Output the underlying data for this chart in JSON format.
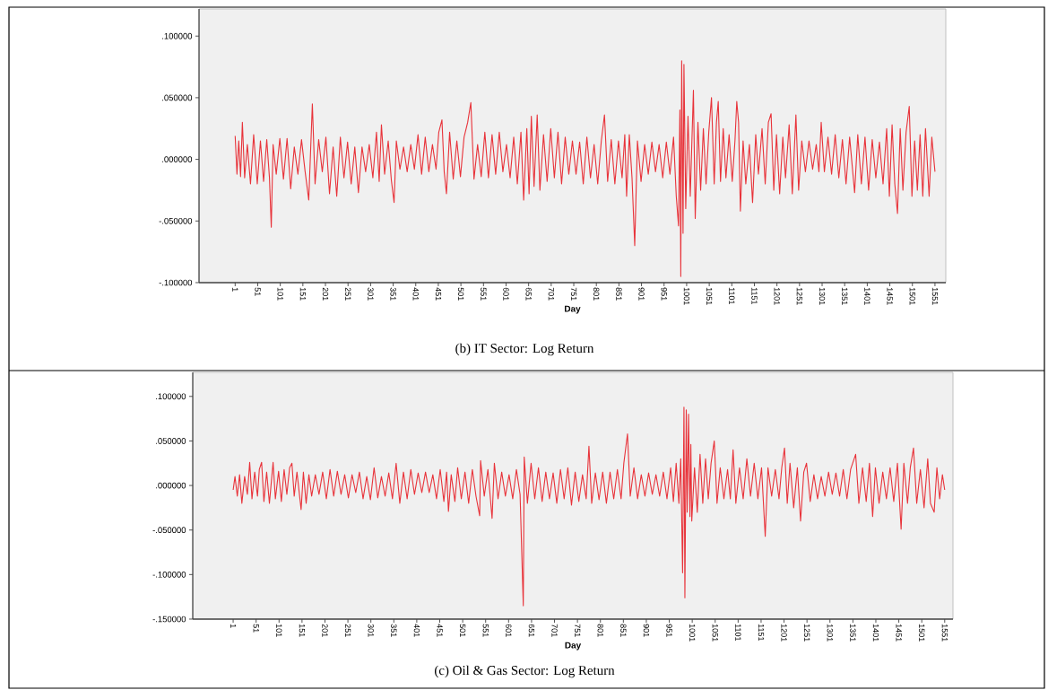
{
  "chart_data": [
    {
      "type": "line",
      "xlabel": "Day",
      "annotations": [
        "(b) IT Sector: Log Return"
      ],
      "color": "#e8333a",
      "marker": "none",
      "line_style": "solid",
      "xlim": [
        -79,
        1575
      ],
      "ylim": [
        -0.1,
        0.122
      ],
      "xticks": [
        1,
        51,
        101,
        151,
        201,
        251,
        301,
        351,
        401,
        451,
        501,
        551,
        601,
        651,
        701,
        751,
        801,
        851,
        901,
        951,
        1001,
        1051,
        1101,
        1151,
        1201,
        1251,
        1301,
        1351,
        1401,
        1451,
        1501,
        1551
      ],
      "yticks": [
        {
          "value": -0.1,
          "label": "-.100000"
        },
        {
          "value": -0.05,
          "label": "-.050000"
        },
        {
          "value": 0,
          "label": ".000000"
        },
        {
          "value": 0.05,
          "label": ".050000"
        },
        {
          "value": 0.1,
          "label": ".100000"
        }
      ],
      "x": [
        1,
        5,
        9,
        13,
        17,
        22,
        28,
        35,
        42,
        50,
        57,
        64,
        71,
        77,
        81,
        85,
        92,
        100,
        108,
        116,
        124,
        132,
        140,
        148,
        156,
        164,
        172,
        178,
        186,
        194,
        202,
        210,
        218,
        226,
        234,
        242,
        250,
        258,
        266,
        274,
        282,
        290,
        298,
        306,
        314,
        320,
        325,
        332,
        340,
        347,
        353,
        358,
        366,
        374,
        382,
        390,
        398,
        406,
        414,
        422,
        430,
        438,
        446,
        452,
        459,
        464,
        469,
        476,
        484,
        492,
        500,
        508,
        516,
        523,
        530,
        538,
        546,
        554,
        562,
        570,
        578,
        586,
        594,
        602,
        610,
        618,
        626,
        634,
        640,
        647,
        652,
        657,
        663,
        670,
        676,
        684,
        692,
        700,
        708,
        716,
        724,
        732,
        740,
        748,
        756,
        764,
        772,
        780,
        788,
        796,
        804,
        812,
        819,
        826,
        834,
        842,
        850,
        858,
        864,
        868,
        874,
        880,
        886,
        892,
        900,
        908,
        916,
        924,
        932,
        940,
        948,
        956,
        964,
        972,
        978,
        983,
        986,
        988,
        990,
        993,
        995,
        999,
        1004,
        1009,
        1016,
        1020,
        1026,
        1032,
        1038,
        1044,
        1050,
        1056,
        1062,
        1067,
        1071,
        1076,
        1082,
        1088,
        1095,
        1102,
        1108,
        1112,
        1116,
        1120,
        1126,
        1132,
        1140,
        1147,
        1154,
        1160,
        1168,
        1175,
        1182,
        1188,
        1194,
        1200,
        1207,
        1214,
        1220,
        1228,
        1235,
        1243,
        1249,
        1256,
        1264,
        1272,
        1280,
        1288,
        1294,
        1299,
        1306,
        1314,
        1322,
        1330,
        1338,
        1346,
        1354,
        1362,
        1373,
        1380,
        1388,
        1396,
        1404,
        1412,
        1420,
        1428,
        1436,
        1444,
        1450,
        1456,
        1462,
        1468,
        1474,
        1480,
        1487,
        1494,
        1500,
        1506,
        1512,
        1518,
        1524,
        1530,
        1538,
        1544,
        1551
      ],
      "values": [
        0.019,
        -0.012,
        0.015,
        -0.014,
        0.03,
        -0.015,
        0.012,
        -0.02,
        0.02,
        -0.02,
        0.015,
        -0.018,
        0.016,
        -0.015,
        -0.055,
        0.012,
        -0.012,
        0.017,
        -0.016,
        0.017,
        -0.024,
        0.01,
        -0.012,
        0.016,
        -0.01,
        -0.033,
        0.045,
        -0.02,
        0.016,
        -0.01,
        0.018,
        -0.028,
        0.01,
        -0.03,
        0.018,
        -0.015,
        0.014,
        -0.02,
        0.01,
        -0.027,
        0.01,
        -0.01,
        0.012,
        -0.015,
        0.022,
        -0.018,
        0.028,
        -0.012,
        0.015,
        -0.017,
        -0.035,
        0.015,
        -0.008,
        0.01,
        -0.01,
        0.012,
        -0.008,
        0.02,
        -0.012,
        0.018,
        -0.01,
        0.012,
        -0.008,
        0.022,
        0.032,
        -0.01,
        -0.028,
        0.022,
        -0.016,
        0.015,
        -0.014,
        0.018,
        0.03,
        0.046,
        -0.016,
        0.012,
        -0.014,
        0.022,
        -0.015,
        0.02,
        -0.012,
        0.022,
        -0.01,
        0.012,
        -0.015,
        0.018,
        -0.02,
        0.022,
        -0.033,
        0.025,
        -0.028,
        0.035,
        -0.022,
        0.036,
        -0.025,
        0.02,
        -0.018,
        0.025,
        -0.015,
        0.022,
        -0.02,
        0.018,
        -0.012,
        0.015,
        -0.012,
        0.014,
        -0.02,
        0.018,
        -0.015,
        0.012,
        -0.02,
        0.015,
        0.036,
        -0.018,
        0.016,
        -0.02,
        0.015,
        -0.015,
        0.02,
        -0.03,
        0.02,
        -0.015,
        -0.07,
        0.015,
        -0.018,
        0.012,
        -0.012,
        0.014,
        -0.01,
        0.012,
        -0.015,
        0.014,
        -0.012,
        0.018,
        -0.03,
        -0.054,
        0.04,
        -0.095,
        0.08,
        -0.06,
        0.077,
        -0.04,
        0.035,
        -0.03,
        0.056,
        -0.048,
        0.03,
        -0.025,
        0.025,
        -0.02,
        0.022,
        0.05,
        -0.02,
        0.03,
        0.047,
        -0.018,
        0.025,
        -0.015,
        0.02,
        -0.018,
        0.015,
        0.047,
        0.03,
        -0.042,
        0.015,
        -0.02,
        0.012,
        -0.035,
        0.02,
        -0.012,
        0.025,
        -0.02,
        0.03,
        0.037,
        -0.025,
        0.02,
        -0.028,
        0.018,
        -0.015,
        0.028,
        -0.028,
        0.036,
        -0.025,
        0.015,
        -0.01,
        0.015,
        -0.008,
        0.012,
        -0.01,
        0.03,
        -0.01,
        0.018,
        -0.012,
        0.02,
        -0.015,
        0.016,
        -0.02,
        0.018,
        -0.027,
        0.02,
        -0.02,
        0.018,
        -0.025,
        0.016,
        -0.015,
        0.014,
        -0.02,
        0.025,
        -0.03,
        0.028,
        -0.02,
        -0.044,
        0.025,
        -0.025,
        0.022,
        0.043,
        -0.03,
        0.015,
        -0.025,
        0.02,
        -0.03,
        0.025,
        -0.03,
        0.018,
        -0.01
      ]
    },
    {
      "type": "line",
      "xlabel": "Day",
      "annotations": [
        "(c) Oil & Gas Sector: Log Return"
      ],
      "color": "#e8333a",
      "marker": "none",
      "line_style": "solid",
      "xlim": [
        -87,
        1569
      ],
      "ylim": [
        -0.15,
        0.127
      ],
      "xticks": [
        1,
        51,
        101,
        151,
        201,
        251,
        301,
        351,
        401,
        451,
        501,
        551,
        601,
        651,
        701,
        751,
        801,
        851,
        901,
        951,
        1001,
        1051,
        1101,
        1151,
        1201,
        1251,
        1301,
        1351,
        1401,
        1451,
        1501,
        1551
      ],
      "yticks": [
        {
          "value": -0.15,
          "label": "-.150000"
        },
        {
          "value": -0.1,
          "label": "-.100000"
        },
        {
          "value": -0.05,
          "label": "-.050000"
        },
        {
          "value": 0,
          "label": ".000000"
        },
        {
          "value": 0.05,
          "label": ".050000"
        },
        {
          "value": 0.1,
          "label": ".100000"
        }
      ],
      "x": [
        1,
        5,
        10,
        15,
        20,
        26,
        32,
        37,
        42,
        48,
        54,
        58,
        63,
        68,
        74,
        80,
        88,
        93,
        100,
        106,
        112,
        118,
        124,
        129,
        134,
        140,
        149,
        154,
        160,
        166,
        172,
        180,
        188,
        196,
        204,
        212,
        220,
        228,
        236,
        244,
        252,
        260,
        268,
        276,
        284,
        292,
        300,
        308,
        316,
        324,
        332,
        340,
        348,
        356,
        364,
        372,
        380,
        388,
        396,
        404,
        412,
        420,
        428,
        436,
        444,
        452,
        460,
        466,
        470,
        476,
        484,
        490,
        498,
        506,
        514,
        522,
        530,
        538,
        540,
        548,
        556,
        565,
        570,
        578,
        586,
        594,
        602,
        610,
        618,
        626,
        633,
        635,
        642,
        650,
        658,
        666,
        674,
        682,
        690,
        698,
        706,
        714,
        722,
        730,
        738,
        746,
        754,
        762,
        770,
        776,
        782,
        790,
        798,
        806,
        814,
        822,
        830,
        838,
        846,
        852,
        860,
        866,
        874,
        882,
        890,
        898,
        906,
        914,
        922,
        930,
        938,
        946,
        954,
        960,
        966,
        972,
        976,
        980,
        983,
        985,
        988,
        990,
        993,
        996,
        998,
        1000,
        1006,
        1012,
        1018,
        1024,
        1030,
        1036,
        1042,
        1049,
        1055,
        1062,
        1070,
        1078,
        1084,
        1090,
        1096,
        1104,
        1112,
        1120,
        1128,
        1136,
        1144,
        1152,
        1160,
        1166,
        1174,
        1182,
        1190,
        1196,
        1202,
        1208,
        1214,
        1222,
        1230,
        1237,
        1244,
        1250,
        1258,
        1266,
        1274,
        1282,
        1290,
        1298,
        1306,
        1314,
        1322,
        1330,
        1338,
        1346,
        1357,
        1364,
        1372,
        1380,
        1387,
        1394,
        1400,
        1408,
        1416,
        1424,
        1432,
        1440,
        1448,
        1456,
        1462,
        1470,
        1476,
        1483,
        1490,
        1498,
        1506,
        1514,
        1520,
        1528,
        1534,
        1540,
        1546,
        1551
      ],
      "values": [
        -0.005,
        0.01,
        -0.012,
        0.012,
        -0.02,
        0.01,
        -0.01,
        0.026,
        -0.015,
        0.015,
        -0.012,
        0.018,
        0.026,
        -0.018,
        0.015,
        -0.02,
        0.026,
        -0.015,
        0.016,
        -0.018,
        0.018,
        -0.01,
        0.02,
        0.025,
        -0.012,
        0.015,
        -0.027,
        0.015,
        -0.02,
        0.012,
        -0.012,
        0.012,
        -0.01,
        0.015,
        -0.015,
        0.018,
        -0.012,
        0.016,
        -0.01,
        0.012,
        -0.014,
        0.012,
        -0.008,
        0.015,
        -0.015,
        0.01,
        -0.016,
        0.02,
        -0.014,
        0.01,
        -0.012,
        0.014,
        -0.015,
        0.025,
        -0.02,
        0.015,
        -0.015,
        0.018,
        -0.01,
        0.014,
        -0.008,
        0.015,
        -0.008,
        0.012,
        -0.015,
        0.018,
        -0.018,
        0.015,
        -0.029,
        0.012,
        -0.018,
        0.02,
        -0.015,
        0.015,
        -0.02,
        0.018,
        -0.012,
        -0.034,
        0.028,
        -0.012,
        0.018,
        -0.037,
        0.025,
        -0.015,
        0.015,
        -0.012,
        0.012,
        -0.015,
        0.018,
        -0.01,
        -0.135,
        0.032,
        -0.02,
        0.025,
        -0.015,
        0.02,
        -0.018,
        0.015,
        -0.015,
        0.014,
        -0.02,
        0.018,
        -0.015,
        0.02,
        -0.022,
        0.015,
        -0.018,
        0.012,
        -0.015,
        0.044,
        -0.02,
        0.014,
        -0.016,
        0.015,
        -0.02,
        0.015,
        -0.015,
        0.018,
        -0.015,
        0.025,
        0.058,
        -0.012,
        0.02,
        -0.015,
        0.012,
        -0.012,
        0.014,
        -0.01,
        0.012,
        -0.012,
        0.015,
        -0.015,
        0.02,
        -0.018,
        0.025,
        -0.02,
        0.03,
        -0.098,
        0.088,
        -0.126,
        0.085,
        -0.03,
        0.08,
        -0.035,
        0.046,
        -0.04,
        0.02,
        -0.03,
        0.035,
        -0.02,
        0.03,
        -0.015,
        0.025,
        0.05,
        -0.02,
        0.02,
        -0.015,
        0.018,
        -0.015,
        0.04,
        -0.02,
        0.02,
        -0.015,
        0.03,
        -0.012,
        0.025,
        -0.015,
        0.02,
        -0.057,
        0.02,
        -0.012,
        0.018,
        -0.015,
        0.02,
        0.042,
        -0.02,
        0.025,
        -0.025,
        0.02,
        -0.04,
        0.015,
        0.025,
        -0.018,
        0.012,
        -0.015,
        0.01,
        -0.012,
        0.015,
        -0.01,
        0.014,
        -0.012,
        0.018,
        -0.015,
        0.018,
        0.035,
        -0.02,
        0.02,
        -0.018,
        0.025,
        -0.035,
        0.02,
        -0.02,
        0.015,
        -0.015,
        0.02,
        -0.018,
        0.025,
        -0.049,
        0.025,
        -0.02,
        0.02,
        0.042,
        -0.02,
        0.018,
        -0.025,
        0.03,
        -0.02,
        -0.03,
        0.02,
        -0.015,
        0.012,
        -0.005
      ]
    }
  ]
}
